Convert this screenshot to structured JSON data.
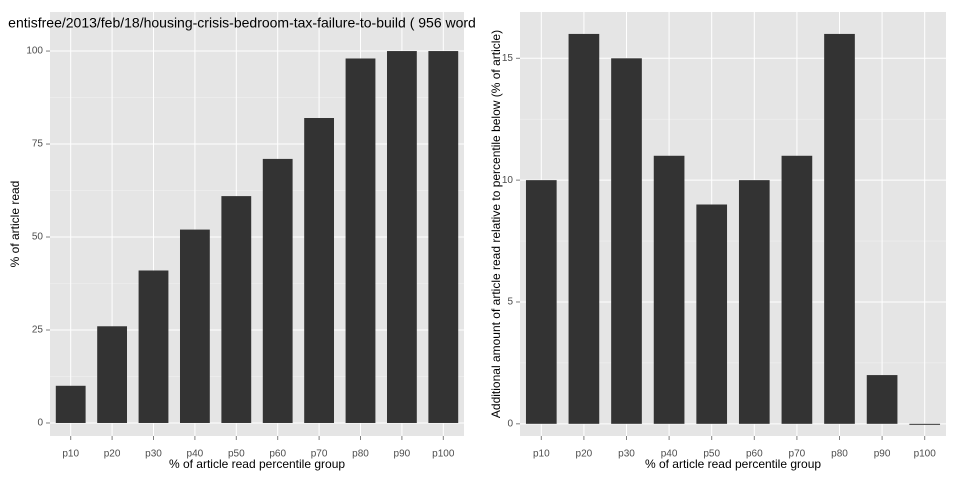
{
  "chart_data": [
    {
      "type": "bar",
      "title": "entisfree/2013/feb/18/housing-crisis-bedroom-tax-failure-to-build ( 956 word",
      "x_label": "% of article read percentile group",
      "y_label": "% of article read",
      "categories": [
        "p10",
        "p20",
        "p30",
        "p40",
        "p50",
        "p60",
        "p70",
        "p80",
        "p90",
        "p100"
      ],
      "values": [
        10,
        26,
        41,
        52,
        61,
        71,
        82,
        98,
        100,
        100
      ],
      "color": "#333333",
      "ylim": [
        -3.5,
        110.5
      ],
      "yticks": [
        0,
        25,
        50,
        75,
        100
      ],
      "grid": true
    },
    {
      "type": "bar",
      "x_label": "% of article read percentile group",
      "y_label": "Additional amount of article read relative to percentile below (% of article)",
      "categories": [
        "p10",
        "p20",
        "p30",
        "p40",
        "p50",
        "p60",
        "p70",
        "p80",
        "p90",
        "p100"
      ],
      "values": [
        10,
        16,
        15,
        11,
        9,
        10,
        11,
        16,
        2,
        0
      ],
      "color": "#333333",
      "ylim": [
        -0.5,
        16.9
      ],
      "yticks": [
        0,
        5,
        10,
        15
      ],
      "grid": true
    }
  ]
}
